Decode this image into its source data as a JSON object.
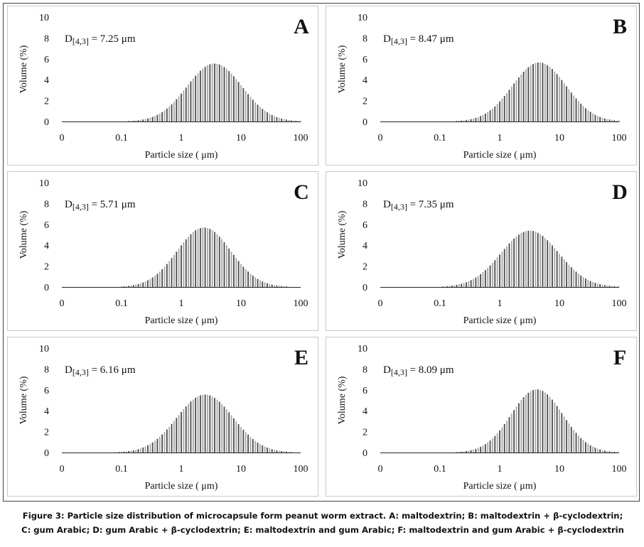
{
  "chart_data": [
    {
      "type": "bar",
      "panel_label": "A",
      "annotation_prefix": "D",
      "annotation_subscript": "[4,3]",
      "annotation_value": "= 7.25 μm",
      "d43": 7.25,
      "ylabel": "Volume (%)",
      "xlabel": "Particle size (  μm)",
      "xscale": "log",
      "xticks": [
        "0",
        "0.1",
        "1",
        "10",
        "100"
      ],
      "ylim": [
        0,
        10
      ],
      "yticks": [
        "0",
        "2",
        "4",
        "6",
        "8",
        "10"
      ],
      "peak_um": 3.6,
      "peak_volume": 5.55,
      "log_sigma": 0.46
    },
    {
      "type": "bar",
      "panel_label": "B",
      "annotation_prefix": "D",
      "annotation_subscript": "[4,3]",
      "annotation_value": "= 8.47 μm",
      "d43": 8.47,
      "ylabel": "Volume (%)",
      "xlabel": "Particle size (  μm)",
      "xscale": "log",
      "xticks": [
        "0",
        "0.1",
        "1",
        "10",
        "100"
      ],
      "ylim": [
        0,
        10
      ],
      "yticks": [
        "0",
        "2",
        "4",
        "6",
        "8",
        "10"
      ],
      "peak_um": 4.6,
      "peak_volume": 5.65,
      "log_sigma": 0.45
    },
    {
      "type": "bar",
      "panel_label": "C",
      "annotation_prefix": "D",
      "annotation_subscript": "[4,3]",
      "annotation_value": "= 5.71 μm",
      "d43": 5.71,
      "ylabel": "Volume (%)",
      "xlabel": "Particle size (  μm)",
      "xscale": "log",
      "xticks": [
        "0",
        "0.1",
        "1",
        "10",
        "100"
      ],
      "ylim": [
        0,
        10
      ],
      "yticks": [
        "0",
        "2",
        "4",
        "6",
        "8",
        "10"
      ],
      "peak_um": 2.4,
      "peak_volume": 5.7,
      "log_sigma": 0.45
    },
    {
      "type": "bar",
      "panel_label": "D",
      "annotation_prefix": "D",
      "annotation_subscript": "[4,3]",
      "annotation_value": "= 7.35 μm",
      "d43": 7.35,
      "ylabel": "Volume (%)",
      "xlabel": "Particle size (  μm)",
      "xscale": "log",
      "xticks": [
        "0",
        "0.1",
        "1",
        "10",
        "100"
      ],
      "ylim": [
        0,
        10
      ],
      "yticks": [
        "0",
        "2",
        "4",
        "6",
        "8",
        "10"
      ],
      "peak_um": 3.2,
      "peak_volume": 5.4,
      "log_sigma": 0.48
    },
    {
      "type": "bar",
      "panel_label": "E",
      "annotation_prefix": "D",
      "annotation_subscript": "[4,3]",
      "annotation_value": "= 6.16 μm",
      "d43": 6.16,
      "ylabel": "Volume (%)",
      "xlabel": "Particle size (  μm)",
      "xscale": "log",
      "xticks": [
        "0",
        "0.1",
        "1",
        "10",
        "100"
      ],
      "ylim": [
        0,
        10
      ],
      "yticks": [
        "0",
        "2",
        "4",
        "6",
        "8",
        "10"
      ],
      "peak_um": 2.5,
      "peak_volume": 5.55,
      "log_sigma": 0.47
    },
    {
      "type": "bar",
      "panel_label": "F",
      "annotation_prefix": "D",
      "annotation_subscript": "[4,3]",
      "annotation_value": "= 8.09 μm",
      "d43": 8.09,
      "ylabel": "Volume (%)",
      "xlabel": "Particle size (  μm)",
      "xscale": "log",
      "xticks": [
        "0",
        "0.1",
        "1",
        "10",
        "100"
      ],
      "ylim": [
        0,
        10
      ],
      "yticks": [
        "0",
        "2",
        "4",
        "6",
        "8",
        "10"
      ],
      "peak_um": 4.2,
      "peak_volume": 6.05,
      "log_sigma": 0.43
    }
  ],
  "caption": {
    "line1": "Figure 3: Particle size distribution of microcapsule form peanut worm extract. A: maltodextrin; B: maltodextrin + β-cyclodextrin;",
    "line2": "C: gum Arabic; D: gum Arabic + β-cyclodextrin; E: maltodextrin and gum Arabic; F: maltodextrin and gum Arabic + β-cyclodextrin"
  },
  "colors": {
    "bar_dark": "#4a4a4a",
    "bar_light": "#a6a6a6",
    "axis": "#222222",
    "text": "#111111"
  }
}
